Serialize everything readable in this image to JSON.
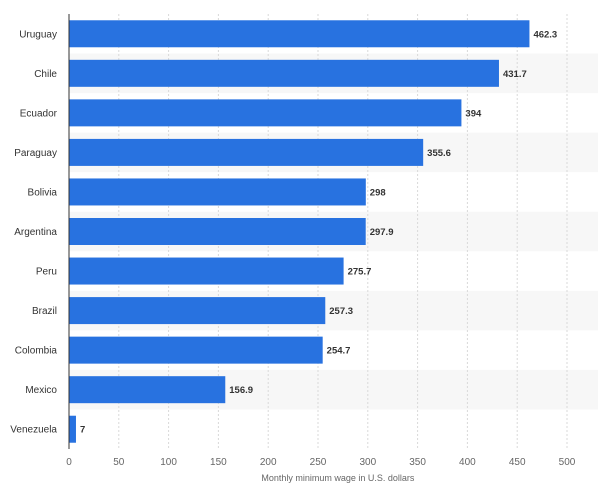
{
  "chart_data": {
    "type": "bar",
    "orientation": "horizontal",
    "title": "",
    "xlabel": "Monthly minimum wage in U.S. dollars",
    "ylabel": "",
    "categories": [
      "Uruguay",
      "Chile",
      "Ecuador",
      "Paraguay",
      "Bolivia",
      "Argentina",
      "Peru",
      "Brazil",
      "Colombia",
      "Mexico",
      "Venezuela"
    ],
    "values": [
      462.3,
      431.7,
      394,
      355.6,
      298,
      297.9,
      275.7,
      257.3,
      254.7,
      156.9,
      7
    ],
    "value_labels": [
      "462.3",
      "431.7",
      "394",
      "355.6",
      "298",
      "297.9",
      "275.7",
      "257.3",
      "254.7",
      "156.9",
      "7"
    ],
    "xlim": [
      0,
      530
    ],
    "xticks": [
      0,
      50,
      100,
      150,
      200,
      250,
      300,
      350,
      400,
      450,
      500
    ],
    "grid": true,
    "colors": {
      "bar": "#2872e0",
      "band": "#f7f7f7",
      "grid": "#d9d9d9",
      "axis": "#333333"
    }
  }
}
